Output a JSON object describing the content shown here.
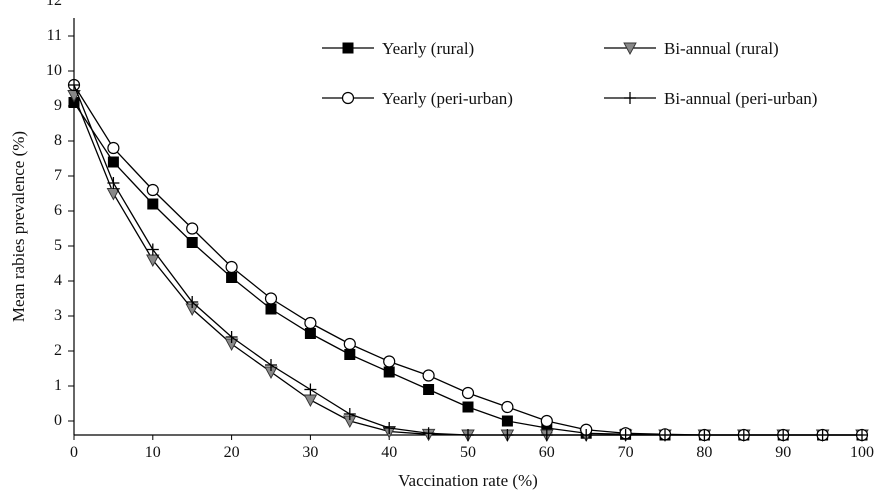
{
  "chart_data": {
    "type": "line",
    "xlabel": "Vaccination rate (%)",
    "ylabel": "Mean rabies prevalence (%)",
    "xlim": [
      0,
      100
    ],
    "ylim": [
      0,
      12
    ],
    "x_ticks": [
      0,
      10,
      20,
      30,
      40,
      50,
      60,
      70,
      80,
      90,
      100
    ],
    "y_tick_labels": [
      "0",
      "1",
      "2",
      "3",
      "4",
      "5",
      "6",
      "7",
      "8",
      "9",
      "10",
      "11",
      "12"
    ],
    "grid": false,
    "legend_position": "top-right",
    "x": [
      0,
      5,
      10,
      15,
      20,
      25,
      30,
      35,
      40,
      45,
      50,
      55,
      60,
      65,
      70,
      75,
      80,
      85,
      90,
      95,
      100
    ],
    "series": [
      {
        "name": "Yearly (rural)",
        "marker": "filled-square",
        "color": "#000000",
        "values": [
          9.5,
          7.8,
          6.6,
          5.5,
          4.5,
          3.6,
          2.9,
          2.3,
          1.8,
          1.3,
          0.8,
          0.4,
          0.2,
          0.05,
          0.02,
          0.0,
          0.0,
          0.0,
          0.0,
          0.0,
          0.0
        ]
      },
      {
        "name": "Bi-annual (rural)",
        "marker": "triangle-down",
        "color": "#888888",
        "values": [
          9.7,
          6.9,
          5.0,
          3.6,
          2.6,
          1.8,
          1.0,
          0.4,
          0.1,
          0.02,
          0.0,
          0.0,
          0.0,
          0.0,
          0.0,
          0.0,
          0.0,
          0.0,
          0.0,
          0.0,
          0.0
        ]
      },
      {
        "name": "Yearly (peri-urban)",
        "marker": "open-circle",
        "color": "#000000",
        "values": [
          10.0,
          8.2,
          7.0,
          5.9,
          4.8,
          3.9,
          3.2,
          2.6,
          2.1,
          1.7,
          1.2,
          0.8,
          0.4,
          0.15,
          0.05,
          0.02,
          0.0,
          0.0,
          0.0,
          0.0,
          0.0
        ]
      },
      {
        "name": "Bi-annual (peri-urban)",
        "marker": "plus",
        "color": "#000000",
        "values": [
          10.0,
          7.2,
          5.3,
          3.8,
          2.8,
          2.0,
          1.3,
          0.6,
          0.2,
          0.05,
          0.0,
          0.0,
          0.0,
          0.0,
          0.0,
          0.0,
          0.0,
          0.0,
          0.0,
          0.0,
          0.0
        ]
      }
    ]
  }
}
